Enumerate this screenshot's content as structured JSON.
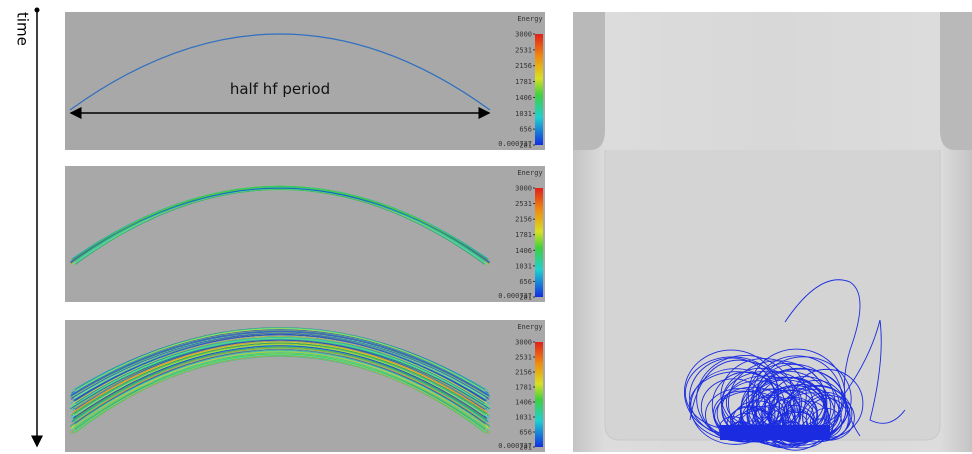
{
  "time_label": "time",
  "panels": [
    {
      "annotation": "half hf period",
      "colorbar": {
        "title": "Energy",
        "labels": [
          "3000",
          "2531",
          "2156",
          "1781",
          "1406",
          "1031",
          "656",
          "281",
          "0.000737"
        ]
      }
    },
    {
      "colorbar": {
        "title": "Energy",
        "labels": [
          "3000",
          "2531",
          "2156",
          "1781",
          "1406",
          "1031",
          "656",
          "281",
          "0.000737"
        ]
      }
    },
    {
      "colorbar": {
        "title": "Energy",
        "labels": [
          "3000",
          "2531",
          "2156",
          "1781",
          "1406",
          "1031",
          "656",
          "281",
          "0.000737"
        ]
      }
    }
  ]
}
